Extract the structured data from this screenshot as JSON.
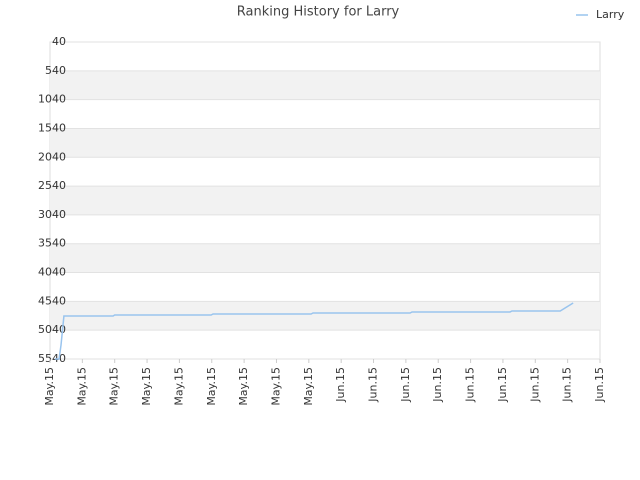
{
  "chart_data": {
    "type": "line",
    "title": "Ranking History for Larry",
    "series": [
      {
        "name": "Larry",
        "color": "#99c4ee",
        "x": [
          0.15,
          0.28,
          0.34,
          0.43,
          1.95,
          2.0,
          4.98,
          5.04,
          8.07,
          8.13,
          11.13,
          11.19,
          14.22,
          14.28,
          15.77,
          16.17
        ],
        "values": [
          5540,
          5540,
          5300,
          4794,
          4794,
          4777,
          4777,
          4759,
          4759,
          4742,
          4742,
          4724,
          4724,
          4707,
          4707,
          4568
        ]
      }
    ],
    "xlim": [
      0,
      17
    ],
    "xticks": [
      {
        "value": 0,
        "label": "May.15"
      },
      {
        "value": 1,
        "label": "May.15"
      },
      {
        "value": 2,
        "label": "May.15"
      },
      {
        "value": 3,
        "label": "May.15"
      },
      {
        "value": 4,
        "label": "May.15"
      },
      {
        "value": 5,
        "label": "May.15"
      },
      {
        "value": 6,
        "label": "May.15"
      },
      {
        "value": 7,
        "label": "May.15"
      },
      {
        "value": 8,
        "label": "May.15"
      },
      {
        "value": 9,
        "label": "Jun.15"
      },
      {
        "value": 10,
        "label": "Jun.15"
      },
      {
        "value": 11,
        "label": "Jun.15"
      },
      {
        "value": 12,
        "label": "Jun.15"
      },
      {
        "value": 13,
        "label": "Jun.15"
      },
      {
        "value": 14,
        "label": "Jun.15"
      },
      {
        "value": 15,
        "label": "Jun.15"
      },
      {
        "value": 16,
        "label": "Jun.15"
      },
      {
        "value": 17,
        "label": "Jun.15"
      }
    ],
    "ylim": [
      5540,
      40
    ],
    "yticks": [
      40,
      540,
      1040,
      1540,
      2040,
      2540,
      3040,
      3540,
      4040,
      4540,
      5040,
      5540
    ],
    "grid": true,
    "legend": "top-right"
  }
}
